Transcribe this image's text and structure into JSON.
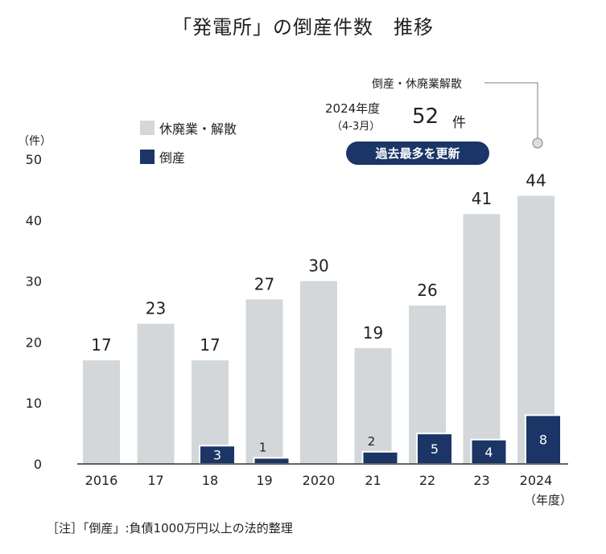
{
  "title": "「発電所」の倒産件数　推移",
  "legend": {
    "closure_label": "休廃業・解散",
    "bankruptcy_label": "倒産"
  },
  "y_unit": "（件）",
  "x_unit": "（年度）",
  "callout": {
    "line_label": "倒産・休廃業解散",
    "period_label": "2024年度",
    "period_sub": "（4-3月）",
    "total_value": "52",
    "total_unit": "件",
    "badge": "過去最多を更新"
  },
  "note": "［注］「倒産」:負債1000万円以上の法的整理",
  "colors": {
    "closure": "#d3d7da",
    "bankruptcy": "#1a3566",
    "text": "#222222",
    "callout_line": "#999999"
  },
  "chart_data": {
    "type": "bar",
    "title": "「発電所」の倒産件数　推移",
    "categories": [
      "2016",
      "17",
      "18",
      "19",
      "2020",
      "21",
      "22",
      "23",
      "2024"
    ],
    "series": [
      {
        "name": "休廃業・解散",
        "values": [
          17,
          23,
          17,
          27,
          30,
          19,
          26,
          41,
          44
        ]
      },
      {
        "name": "倒産",
        "values": [
          0,
          0,
          3,
          1,
          0,
          2,
          5,
          4,
          8
        ]
      }
    ],
    "ylim": [
      0,
      50
    ],
    "yticks": [
      0,
      10,
      20,
      30,
      40,
      50
    ],
    "xlabel": "（年度）",
    "ylabel": "（件）",
    "grid": false,
    "legend_position": "top-left"
  }
}
